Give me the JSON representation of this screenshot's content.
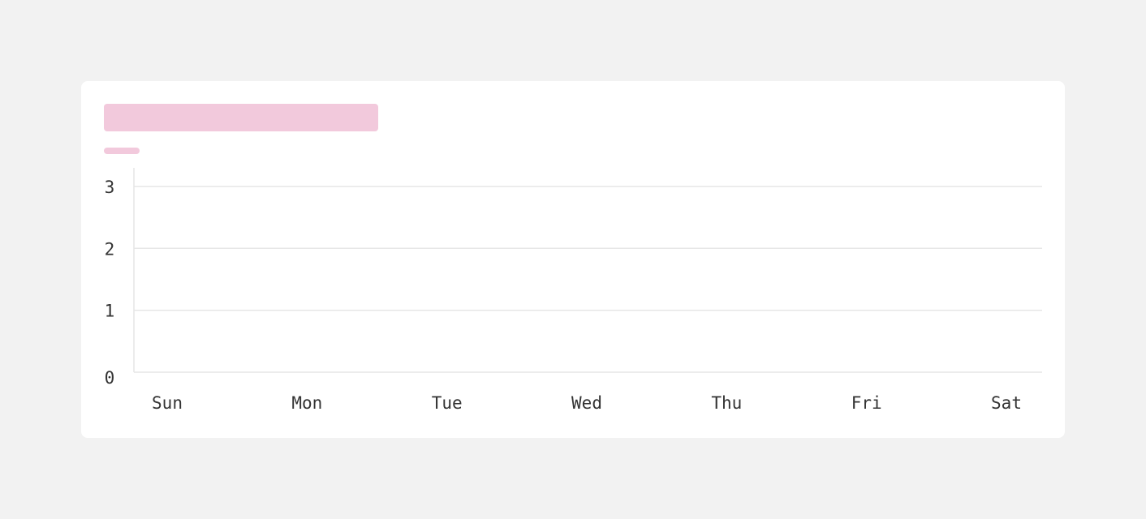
{
  "chart_data": {
    "type": "bar",
    "categories": [
      "Sun",
      "Mon",
      "Tue",
      "Wed",
      "Thu",
      "Fri",
      "Sat"
    ],
    "ylim": [
      0,
      3.3
    ],
    "yticks": [
      0,
      1,
      2,
      3
    ],
    "grid": true
  }
}
